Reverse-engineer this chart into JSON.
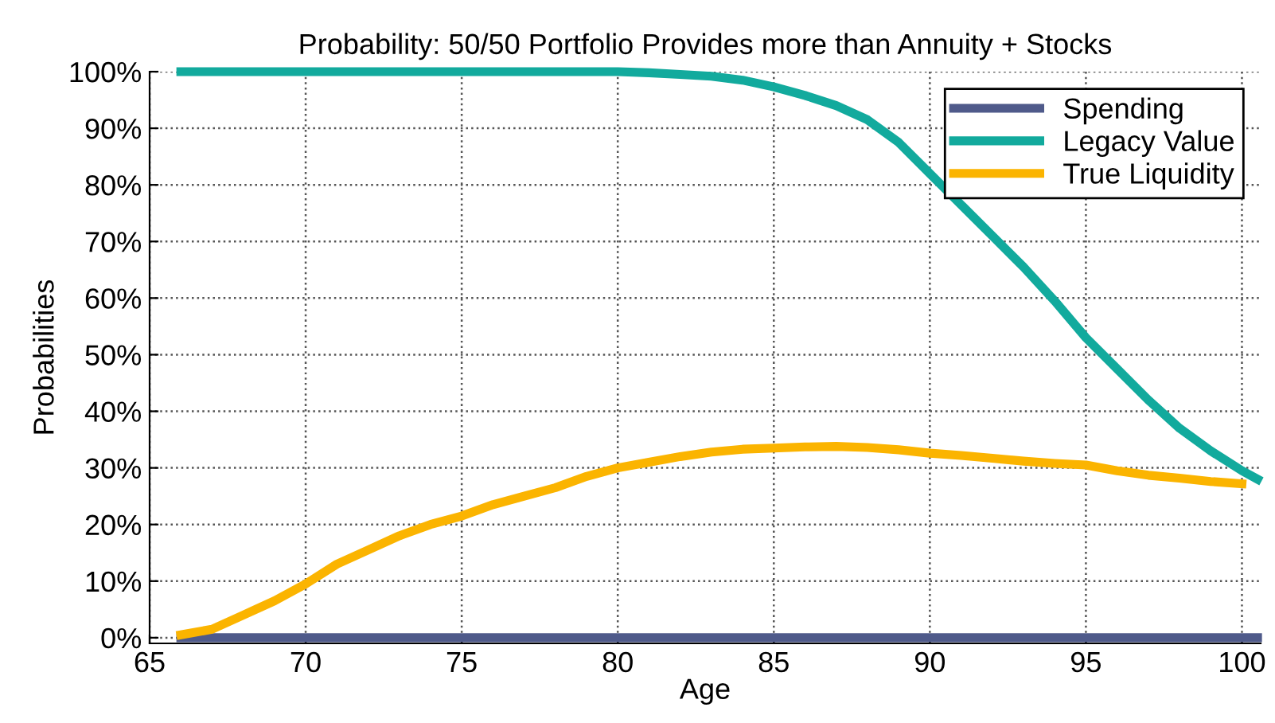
{
  "chart_data": {
    "type": "line",
    "title": "Probability: 50/50 Portfolio Provides more than Annuity + Stocks",
    "xlabel": "Age",
    "ylabel": "Probabilities",
    "series": [
      {
        "name": "Spending",
        "color": "#4f5a8a",
        "x": [
          66,
          70,
          75,
          80,
          85,
          90,
          95,
          100,
          100.5
        ],
        "values": [
          0,
          0,
          0,
          0,
          0,
          0,
          0,
          0,
          0
        ]
      },
      {
        "name": "Legacy Value",
        "color": "#12aa9d",
        "x": [
          66,
          70,
          75,
          80,
          81,
          82,
          83,
          84,
          85,
          86,
          87,
          88,
          89,
          90,
          91,
          92,
          93,
          94,
          95,
          96,
          97,
          98,
          99,
          100,
          100.5
        ],
        "values": [
          100,
          100,
          100,
          100,
          99.8,
          99.5,
          99.2,
          98.5,
          97.3,
          95.8,
          94,
          91.5,
          87.5,
          82,
          76.5,
          71,
          65.5,
          59.5,
          53,
          47.5,
          42,
          37,
          33,
          29.5,
          28
        ]
      },
      {
        "name": "True Liquidity",
        "color": "#fbb400",
        "x": [
          66,
          67,
          68,
          69,
          70,
          71,
          72,
          73,
          74,
          75,
          76,
          77,
          78,
          79,
          80,
          81,
          82,
          83,
          84,
          85,
          86,
          87,
          88,
          89,
          90,
          91,
          92,
          93,
          94,
          95,
          96,
          97,
          98,
          99,
          100
        ],
        "values": [
          0.5,
          1.5,
          4,
          6.5,
          9.5,
          13,
          15.5,
          18,
          20,
          21.5,
          23.5,
          25,
          26.5,
          28.5,
          30,
          31,
          32,
          32.8,
          33.3,
          33.5,
          33.7,
          33.8,
          33.6,
          33.2,
          32.6,
          32.2,
          31.7,
          31.2,
          30.8,
          30.5,
          29.5,
          28.7,
          28.2,
          27.6,
          27.2
        ]
      }
    ],
    "xlim": [
      65,
      100.6
    ],
    "xticks": [
      65,
      70,
      75,
      80,
      85,
      90,
      95,
      100
    ],
    "ylim": [
      -1,
      100
    ],
    "yticks": [
      {
        "value": 0,
        "label": "0%"
      },
      {
        "value": 10,
        "label": "10%"
      },
      {
        "value": 20,
        "label": "20%"
      },
      {
        "value": 30,
        "label": "30%"
      },
      {
        "value": 40,
        "label": "40%"
      },
      {
        "value": 50,
        "label": "50%"
      },
      {
        "value": 60,
        "label": "60%"
      },
      {
        "value": 70,
        "label": "70%"
      },
      {
        "value": 80,
        "label": "80%"
      },
      {
        "value": 90,
        "label": "90%"
      },
      {
        "value": 100,
        "label": "100%"
      }
    ],
    "grid": true,
    "legend": "top right",
    "line_style": "solid",
    "marker": "none"
  }
}
